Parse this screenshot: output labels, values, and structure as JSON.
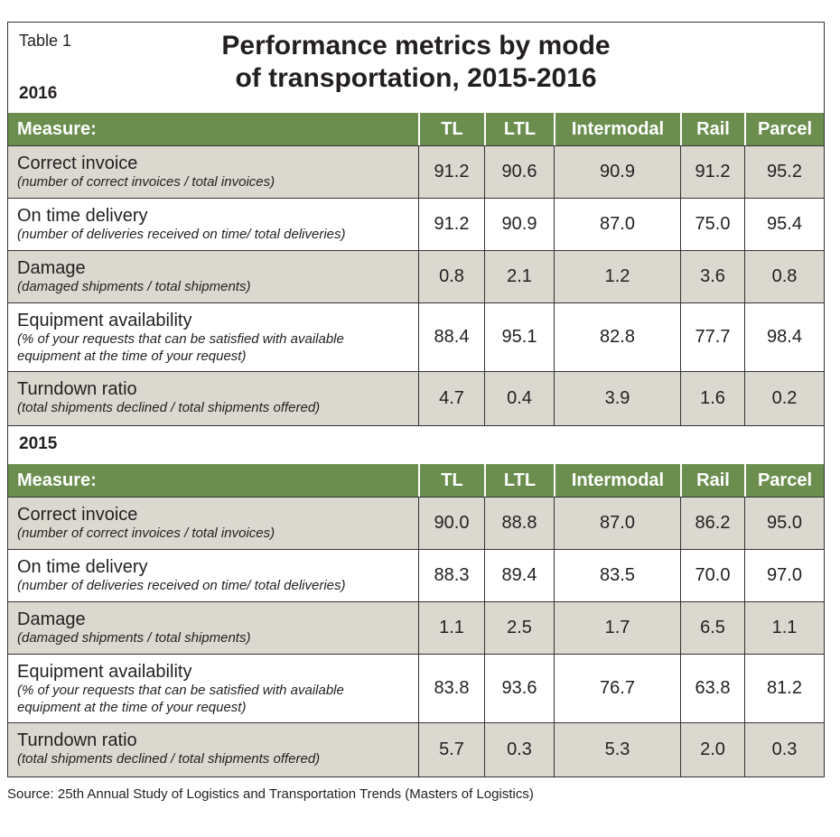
{
  "title_label": "Table 1",
  "title_lines": [
    "Performance metrics by mode",
    "of transportation, 2015-2016"
  ],
  "sections": [
    {
      "year": "2016",
      "header": [
        "Measure:",
        "TL",
        "LTL",
        "Intermodal",
        "Rail",
        "Parcel"
      ],
      "rows": [
        {
          "measure": "Correct invoice",
          "note": "(number of correct invoices / total invoices)",
          "values": [
            "91.2",
            "90.6",
            "90.9",
            "91.2",
            "95.2"
          ]
        },
        {
          "measure": "On time delivery",
          "note": "(number of deliveries received on time/ total deliveries)",
          "values": [
            "91.2",
            "90.9",
            "87.0",
            "75.0",
            "95.4"
          ]
        },
        {
          "measure": "Damage",
          "note": "(damaged shipments / total shipments)",
          "values": [
            "0.8",
            "2.1",
            "1.2",
            "3.6",
            "0.8"
          ]
        },
        {
          "measure": "Equipment availability",
          "note": "(% of your requests that can be satisfied with available equipment at the time of your request)",
          "values": [
            "88.4",
            "95.1",
            "82.8",
            "77.7",
            "98.4"
          ]
        },
        {
          "measure": "Turndown ratio",
          "note": "(total shipments declined / total shipments offered)",
          "values": [
            "4.7",
            "0.4",
            "3.9",
            "1.6",
            "0.2"
          ]
        }
      ]
    },
    {
      "year": "2015",
      "header": [
        "Measure:",
        "TL",
        "LTL",
        "Intermodal",
        "Rail",
        "Parcel"
      ],
      "rows": [
        {
          "measure": "Correct invoice",
          "note": "(number of correct invoices / total invoices)",
          "values": [
            "90.0",
            "88.8",
            "87.0",
            "86.2",
            "95.0"
          ]
        },
        {
          "measure": "On time delivery",
          "note": "(number of deliveries received on time/ total deliveries)",
          "values": [
            "88.3",
            "89.4",
            "83.5",
            "70.0",
            "97.0"
          ]
        },
        {
          "measure": "Damage",
          "note": "(damaged shipments / total shipments)",
          "values": [
            "1.1",
            "2.5",
            "1.7",
            "6.5",
            "1.1"
          ]
        },
        {
          "measure": "Equipment availability",
          "note": "(% of your requests that can be satisfied with available equipment at the time of your request)",
          "values": [
            "83.8",
            "93.6",
            "76.7",
            "63.8",
            "81.2"
          ]
        },
        {
          "measure": "Turndown ratio",
          "note": "(total shipments declined / total shipments offered)",
          "values": [
            "5.7",
            "0.3",
            "5.3",
            "2.0",
            "0.3"
          ]
        }
      ]
    }
  ],
  "source": "Source: 25th Annual Study of Logistics and Transportation Trends (Masters of Logistics)"
}
